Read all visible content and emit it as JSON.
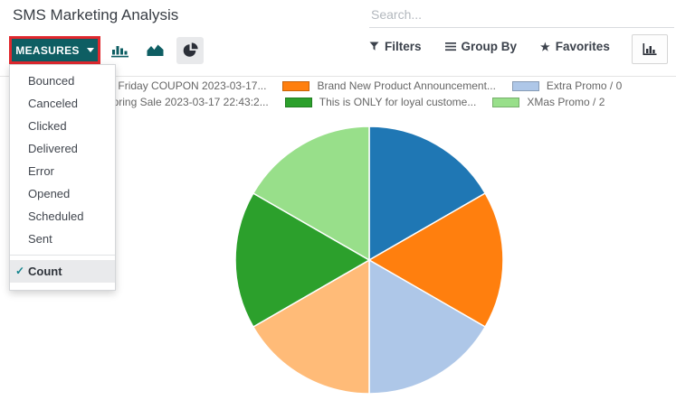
{
  "page": {
    "title": "SMS Marketing Analysis"
  },
  "search": {
    "placeholder": "Search..."
  },
  "toolbar": {
    "measures_label": "MEASURES",
    "filters_label": "Filters",
    "group_by_label": "Group By",
    "favorites_label": "Favorites"
  },
  "icons": {
    "caret_down": "▼",
    "star": "★",
    "check": "✓"
  },
  "measures_menu": {
    "items": [
      "Bounced",
      "Canceled",
      "Clicked",
      "Delivered",
      "Error",
      "Opened",
      "Scheduled",
      "Sent"
    ],
    "selected_item": "Count"
  },
  "chart_data": {
    "type": "pie",
    "title": "",
    "categories": [
      "Black Friday COUPON 2023-03-17...",
      "Brand New Product Announcement...",
      "Extra Promo / 0",
      "Spring Sale 2023-03-17 22:43:2...",
      "This is ONLY for loyal custome...",
      "XMas Promo / 2"
    ],
    "values": [
      1,
      1,
      1,
      1,
      1,
      1
    ],
    "colors": [
      "#1f77b4",
      "#ff7f0e",
      "#aec7e8",
      "#ffbb78",
      "#2ca02c",
      "#98df8a"
    ],
    "legend_position": "top",
    "start_angle_deg": -90,
    "direction": "clockwise"
  },
  "colors": {
    "primary_teal": "#0e5e63",
    "highlight_red": "#e0282e",
    "icon_dark": "#2b2f38",
    "legend_text": "#666666",
    "selected_row_bg": "#e9eaec",
    "check_teal": "#13848e"
  }
}
